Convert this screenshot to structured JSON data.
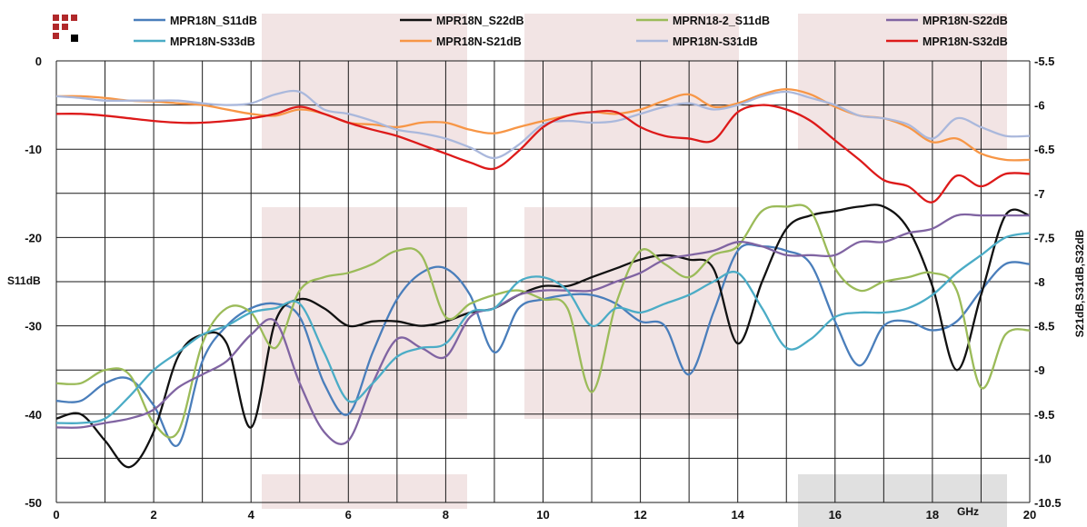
{
  "logo_label": "company logo",
  "chart_data": {
    "type": "line",
    "title": "",
    "xlabel": "GHz",
    "ylabel_left": "S11dB",
    "ylabel_right": "S21dB,S31dB,S32dB",
    "xlim": [
      0,
      20
    ],
    "ylim_left": [
      -50,
      0
    ],
    "ylim_right": [
      -10.5,
      -5.5
    ],
    "x_ticks": [
      0,
      2,
      4,
      6,
      8,
      10,
      12,
      14,
      16,
      18,
      20
    ],
    "x_tick_labels": [
      "0",
      "2",
      "4",
      "6",
      "8",
      "10",
      "12",
      "14",
      "16",
      "18",
      "20"
    ],
    "y_left_ticks": [
      0,
      -10,
      -20,
      -30,
      -40,
      -50
    ],
    "y_left_tick_labels": [
      "0",
      "-10",
      "-20",
      "-30",
      "-40",
      "-50"
    ],
    "y_right_ticks": [
      -5.5,
      -6,
      -6.5,
      -7,
      -7.5,
      -8,
      -8.5,
      -9,
      -9.5,
      -10,
      -10.5
    ],
    "y_right_tick_labels": [
      "-5.5",
      "-6",
      "-6.5",
      "-7",
      "-7.5",
      "-8",
      "-8.5",
      "-9",
      "-9.5",
      "-10",
      "-10.5"
    ],
    "grid": true,
    "legend_position": "top",
    "series": [
      {
        "name": "MPR18N_S11dB",
        "axis": "left",
        "color": "#4a7ebb",
        "x": [
          0,
          0.5,
          1,
          1.5,
          2,
          2.5,
          3,
          3.5,
          4,
          4.5,
          5,
          5.5,
          6,
          6.5,
          7,
          7.5,
          8,
          8.5,
          9,
          9.5,
          10,
          10.5,
          11,
          11.5,
          12,
          12.5,
          13,
          13.5,
          14,
          14.5,
          15,
          15.5,
          16,
          16.5,
          17,
          17.5,
          18,
          18.5,
          19,
          19.5,
          20
        ],
        "y": [
          -38.5,
          -38.5,
          -36.5,
          -36,
          -39,
          -43.5,
          -34,
          -30,
          -28,
          -27.5,
          -29,
          -36.5,
          -40,
          -33,
          -27,
          -24,
          -23.5,
          -26.5,
          -33,
          -28,
          -27,
          -26.5,
          -26.5,
          -27.5,
          -29.5,
          -30,
          -35.5,
          -28.5,
          -21.5,
          -21,
          -21.5,
          -23,
          -29.5,
          -34.5,
          -30,
          -29.5,
          -30.5,
          -29.5,
          -26,
          -23,
          -23
        ]
      },
      {
        "name": "MPR18N_S22dB",
        "axis": "left",
        "color": "#111111",
        "x": [
          0,
          0.5,
          1,
          1.5,
          2,
          2.5,
          3,
          3.5,
          4,
          4.5,
          5,
          5.5,
          6,
          6.5,
          7,
          7.5,
          8,
          8.5,
          9,
          9.5,
          10,
          10.5,
          11,
          11.5,
          12,
          12.5,
          13,
          13.5,
          14,
          14.5,
          15,
          15.5,
          16,
          16.5,
          17,
          17.5,
          18,
          18.5,
          19,
          19.5,
          20
        ],
        "y": [
          -40.5,
          -40,
          -43,
          -46,
          -42,
          -33.5,
          -31,
          -32,
          -41.5,
          -29.5,
          -27,
          -28,
          -30,
          -29.5,
          -29.5,
          -30,
          -29.5,
          -28.5,
          -28,
          -26.5,
          -25.5,
          -25.5,
          -24.5,
          -23.5,
          -22.5,
          -22,
          -22.5,
          -23.5,
          -32,
          -25,
          -19,
          -17.5,
          -17,
          -16.5,
          -16.5,
          -19,
          -25.5,
          -35,
          -26.5,
          -17.5,
          -17.5
        ]
      },
      {
        "name": "MPRN18-2_S11dB",
        "axis": "left",
        "color": "#9bbb59",
        "x": [
          0,
          0.5,
          1,
          1.5,
          2,
          2.5,
          3,
          3.5,
          4,
          4.5,
          5,
          5.5,
          6,
          6.5,
          7,
          7.5,
          8,
          8.5,
          9,
          9.5,
          10,
          10.5,
          11,
          11.5,
          12,
          12.5,
          13,
          13.5,
          14,
          14.5,
          15,
          15.5,
          16,
          16.5,
          17,
          17.5,
          18,
          18.5,
          19,
          19.5,
          20
        ],
        "y": [
          -36.5,
          -36.5,
          -35,
          -35.5,
          -41,
          -42,
          -32,
          -28,
          -28.5,
          -32.5,
          -26,
          -24.5,
          -24,
          -23,
          -21.5,
          -22,
          -29,
          -27.5,
          -26.5,
          -26,
          -27,
          -28,
          -37.5,
          -27.5,
          -21.5,
          -23,
          -24.5,
          -22,
          -21,
          -17,
          -16.5,
          -17,
          -23.5,
          -26,
          -25,
          -24.5,
          -24,
          -26,
          -37,
          -31,
          -30.5
        ]
      },
      {
        "name": "MPR18N-S22dB",
        "axis": "left",
        "color": "#8064a2",
        "x": [
          0,
          0.5,
          1,
          1.5,
          2,
          2.5,
          3,
          3.5,
          4,
          4.5,
          5,
          5.5,
          6,
          6.5,
          7,
          7.5,
          8,
          8.5,
          9,
          9.5,
          10,
          10.5,
          11,
          11.5,
          12,
          12.5,
          13,
          13.5,
          14,
          14.5,
          15,
          15.5,
          16,
          16.5,
          17,
          17.5,
          18,
          18.5,
          19,
          19.5,
          20
        ],
        "y": [
          -41.5,
          -41.5,
          -41,
          -40.5,
          -39.5,
          -37,
          -35.5,
          -34,
          -31,
          -29.5,
          -36.5,
          -42,
          -43,
          -36.5,
          -31.5,
          -32.5,
          -33.5,
          -29,
          -28,
          -26.5,
          -26,
          -26,
          -26,
          -25,
          -24,
          -22.5,
          -22,
          -21.5,
          -20.5,
          -21,
          -22,
          -22,
          -22,
          -20.5,
          -20.5,
          -19.5,
          -19,
          -17.5,
          -17.5,
          -17.5,
          -17.5
        ]
      },
      {
        "name": "MPR18N-S33dB",
        "axis": "left",
        "color": "#4bacc6",
        "x": [
          0,
          0.5,
          1,
          1.5,
          2,
          2.5,
          3,
          3.5,
          4,
          4.5,
          5,
          5.5,
          6,
          6.5,
          7,
          7.5,
          8,
          8.5,
          9,
          9.5,
          10,
          10.5,
          11,
          11.5,
          12,
          12.5,
          13,
          13.5,
          14,
          14.5,
          15,
          15.5,
          16,
          16.5,
          17,
          17.5,
          18,
          18.5,
          19,
          19.5,
          20
        ],
        "y": [
          -41,
          -41,
          -40.5,
          -38,
          -35,
          -33,
          -31,
          -30,
          -28.5,
          -28,
          -27.5,
          -33,
          -38.5,
          -36.5,
          -33.5,
          -32.5,
          -32,
          -28.5,
          -28,
          -25,
          -24.5,
          -26,
          -30,
          -28,
          -28.5,
          -27.5,
          -26.5,
          -25,
          -24,
          -28,
          -32.5,
          -31.5,
          -29,
          -28.5,
          -28.5,
          -28,
          -26.5,
          -24,
          -22,
          -20,
          -19.5
        ]
      },
      {
        "name": "MPR18N-S21dB",
        "axis": "right",
        "color": "#f79646",
        "x": [
          0,
          0.5,
          1,
          1.5,
          2,
          2.5,
          3,
          3.5,
          4,
          4.5,
          5,
          5.5,
          6,
          6.5,
          7,
          7.5,
          8,
          8.5,
          9,
          9.5,
          10,
          10.5,
          11,
          11.5,
          12,
          12.5,
          13,
          13.5,
          14,
          14.5,
          15,
          15.5,
          16,
          16.5,
          17,
          17.5,
          18,
          18.5,
          19,
          19.5,
          20
        ],
        "y": [
          -5.9,
          -5.9,
          -5.92,
          -5.95,
          -5.96,
          -5.98,
          -6.0,
          -6.05,
          -6.1,
          -6.12,
          -6.05,
          -6.1,
          -6.2,
          -6.22,
          -6.25,
          -6.2,
          -6.2,
          -6.28,
          -6.32,
          -6.25,
          -6.18,
          -6.12,
          -6.08,
          -6.1,
          -6.05,
          -5.95,
          -5.88,
          -6.02,
          -5.98,
          -5.88,
          -5.82,
          -5.88,
          -6.02,
          -6.12,
          -6.15,
          -6.25,
          -6.42,
          -6.38,
          -6.55,
          -6.62,
          -6.62
        ]
      },
      {
        "name": "MPR18N-S31dB",
        "axis": "right",
        "color": "#aab8dc",
        "x": [
          0,
          0.5,
          1,
          1.5,
          2,
          2.5,
          3,
          3.5,
          4,
          4.5,
          5,
          5.5,
          6,
          6.5,
          7,
          7.5,
          8,
          8.5,
          9,
          9.5,
          10,
          10.5,
          11,
          11.5,
          12,
          12.5,
          13,
          13.5,
          14,
          14.5,
          15,
          15.5,
          16,
          16.5,
          17,
          17.5,
          18,
          18.5,
          19,
          19.5,
          20
        ],
        "y": [
          -5.9,
          -5.92,
          -5.95,
          -5.95,
          -5.95,
          -5.95,
          -5.98,
          -6.0,
          -5.98,
          -5.88,
          -5.85,
          -6.05,
          -6.1,
          -6.18,
          -6.28,
          -6.32,
          -6.38,
          -6.48,
          -6.6,
          -6.45,
          -6.22,
          -6.18,
          -6.2,
          -6.18,
          -6.1,
          -6.02,
          -5.98,
          -6.05,
          -6.0,
          -5.9,
          -5.85,
          -5.92,
          -6.0,
          -6.12,
          -6.15,
          -6.22,
          -6.38,
          -6.15,
          -6.25,
          -6.35,
          -6.35
        ]
      },
      {
        "name": "MPR18N-S32dB",
        "axis": "right",
        "color": "#dd1a1a",
        "x": [
          0,
          0.5,
          1,
          1.5,
          2,
          2.5,
          3,
          3.5,
          4,
          4.5,
          5,
          5.5,
          6,
          6.5,
          7,
          7.5,
          8,
          8.5,
          9,
          9.5,
          10,
          10.5,
          11,
          11.5,
          12,
          12.5,
          13,
          13.5,
          14,
          14.5,
          15,
          15.5,
          16,
          16.5,
          17,
          17.5,
          18,
          18.5,
          19,
          19.5,
          20
        ],
        "y": [
          -6.1,
          -6.1,
          -6.12,
          -6.15,
          -6.18,
          -6.2,
          -6.2,
          -6.18,
          -6.15,
          -6.1,
          -6.02,
          -6.1,
          -6.2,
          -6.28,
          -6.35,
          -6.45,
          -6.55,
          -6.65,
          -6.72,
          -6.52,
          -6.25,
          -6.12,
          -6.08,
          -6.08,
          -6.25,
          -6.35,
          -6.38,
          -6.4,
          -6.08,
          -6.0,
          -6.05,
          -6.18,
          -6.4,
          -6.62,
          -6.85,
          -6.92,
          -7.1,
          -6.8,
          -6.92,
          -6.78,
          -6.78
        ]
      }
    ]
  }
}
